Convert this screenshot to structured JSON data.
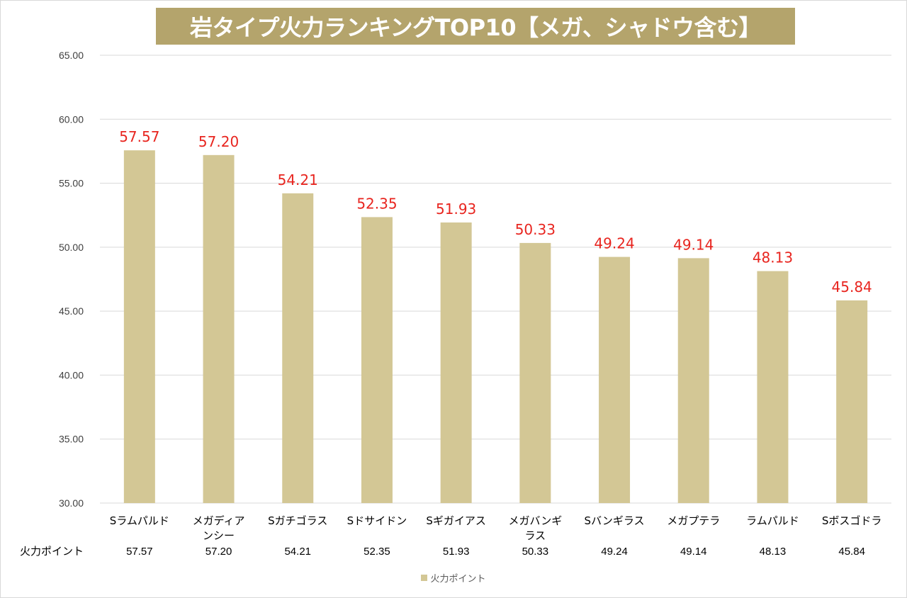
{
  "chart_data": {
    "type": "bar",
    "title": "岩タイプ火力ランキングTOP10【メガ、シャドウ含む】",
    "categories": [
      [
        "Sラムパルド"
      ],
      [
        "メガディア",
        "ンシー"
      ],
      [
        "Sガチゴラス"
      ],
      [
        "Sドサイドン"
      ],
      [
        "Sギガイアス"
      ],
      [
        "メガバンギ",
        "ラス"
      ],
      [
        "Sバンギラス"
      ],
      [
        "メガプテラ"
      ],
      [
        "ラムパルド"
      ],
      [
        "Sボスゴドラ"
      ]
    ],
    "series": [
      {
        "name": "火力ポイント",
        "values": [
          57.57,
          57.2,
          54.21,
          52.35,
          51.93,
          50.33,
          49.24,
          49.14,
          48.13,
          45.84
        ],
        "labels": [
          "57.57",
          "57.20",
          "54.21",
          "52.35",
          "51.93",
          "50.33",
          "49.24",
          "49.14",
          "48.13",
          "45.84"
        ]
      }
    ],
    "ylim": [
      30,
      65
    ],
    "yticks": [
      "30.00",
      "35.00",
      "40.00",
      "45.00",
      "50.00",
      "55.00",
      "60.00",
      "65.00"
    ],
    "grid": true,
    "legend_position": "bottom",
    "data_table": true,
    "colors": {
      "bar": "#d3c795",
      "data_label": "#e8251f",
      "title_bg": "#b4a46c",
      "grid": "#d9d9d9",
      "axis_text": "#404040"
    }
  }
}
